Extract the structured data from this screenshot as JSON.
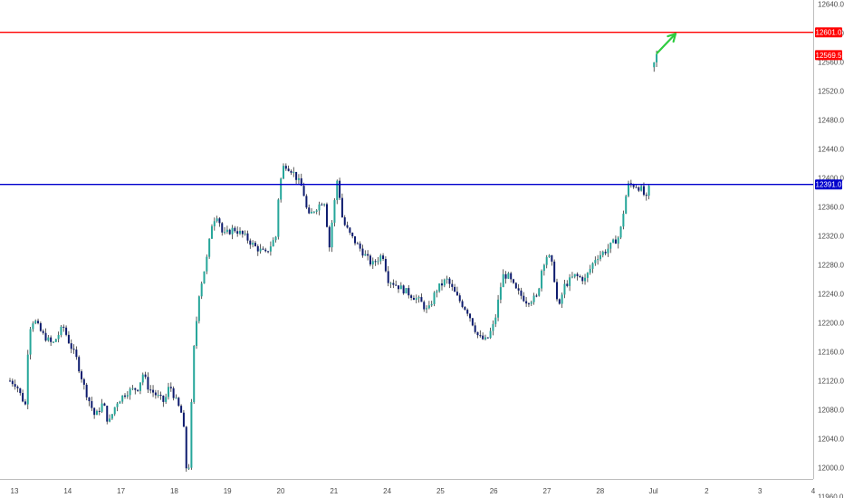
{
  "chart_data": {
    "type": "candlestick",
    "title": "",
    "xlabel": "",
    "ylabel": "",
    "ylim": [
      11940,
      12660
    ],
    "y_ticks": [
      "12640.0",
      "12600.0",
      "12560.0",
      "12520.0",
      "12480.0",
      "12440.0",
      "12400.0",
      "12360.0",
      "12320.0",
      "12280.0",
      "12240.0",
      "12200.0",
      "12160.0",
      "12120.0",
      "12080.0",
      "12040.0",
      "12000.0",
      "11960.0"
    ],
    "x_ticks": [
      "13",
      "14",
      "17",
      "18",
      "19",
      "20",
      "21",
      "24",
      "25",
      "26",
      "27",
      "28",
      "Jul",
      "2",
      "3",
      "4"
    ],
    "grid": false,
    "levels": [
      {
        "name": "resistance",
        "value": 12601.0,
        "label": "12601.0",
        "color": "#ff0000"
      },
      {
        "name": "support",
        "value": 12391.0,
        "label": "12391.0",
        "color": "#0000cc"
      }
    ],
    "last_price": {
      "value": 12569.5,
      "label": "12569.5",
      "color": "#ff0000"
    },
    "annotation": {
      "type": "arrow",
      "color": "#2ecc40",
      "from": {
        "x": 12.15,
        "y": 12572
      },
      "to": {
        "x": 12.5,
        "y": 12599
      }
    },
    "colors": {
      "up": "#26a69a",
      "down": "#0d1b6e",
      "wick": "#333333"
    },
    "price_path": [
      [
        0.0,
        12120
      ],
      [
        0.12,
        12115
      ],
      [
        0.2,
        12100
      ],
      [
        0.3,
        12085
      ],
      [
        0.35,
        12190
      ],
      [
        0.45,
        12205
      ],
      [
        0.6,
        12185
      ],
      [
        0.8,
        12170
      ],
      [
        1.0,
        12195
      ],
      [
        1.1,
        12175
      ],
      [
        1.25,
        12150
      ],
      [
        1.4,
        12110
      ],
      [
        1.5,
        12090
      ],
      [
        1.6,
        12070
      ],
      [
        1.75,
        12090
      ],
      [
        1.85,
        12060
      ],
      [
        2.0,
        12090
      ],
      [
        2.2,
        12105
      ],
      [
        2.4,
        12110
      ],
      [
        2.5,
        12130
      ],
      [
        2.6,
        12110
      ],
      [
        2.75,
        12100
      ],
      [
        2.9,
        12090
      ],
      [
        3.0,
        12115
      ],
      [
        3.1,
        12095
      ],
      [
        3.25,
        12070
      ],
      [
        3.3,
        12005
      ],
      [
        3.35,
        11985
      ],
      [
        3.45,
        12160
      ],
      [
        3.55,
        12240
      ],
      [
        3.7,
        12290
      ],
      [
        3.8,
        12340
      ],
      [
        3.9,
        12350
      ],
      [
        4.0,
        12320
      ],
      [
        4.2,
        12330
      ],
      [
        4.4,
        12320
      ],
      [
        4.6,
        12305
      ],
      [
        4.8,
        12295
      ],
      [
        5.0,
        12320
      ],
      [
        5.05,
        12385
      ],
      [
        5.15,
        12420
      ],
      [
        5.3,
        12410
      ],
      [
        5.5,
        12385
      ],
      [
        5.6,
        12345
      ],
      [
        5.7,
        12355
      ],
      [
        5.9,
        12370
      ],
      [
        6.0,
        12305
      ],
      [
        6.05,
        12340
      ],
      [
        6.15,
        12400
      ],
      [
        6.25,
        12340
      ],
      [
        6.4,
        12320
      ],
      [
        6.6,
        12300
      ],
      [
        6.8,
        12280
      ],
      [
        7.0,
        12295
      ],
      [
        7.1,
        12260
      ],
      [
        7.3,
        12250
      ],
      [
        7.5,
        12240
      ],
      [
        7.7,
        12230
      ],
      [
        7.85,
        12215
      ],
      [
        8.0,
        12245
      ],
      [
        8.2,
        12260
      ],
      [
        8.4,
        12235
      ],
      [
        8.6,
        12215
      ],
      [
        8.8,
        12180
      ],
      [
        8.95,
        12175
      ],
      [
        9.1,
        12200
      ],
      [
        9.25,
        12265
      ],
      [
        9.35,
        12265
      ],
      [
        9.5,
        12245
      ],
      [
        9.7,
        12230
      ],
      [
        9.9,
        12235
      ],
      [
        10.0,
        12280
      ],
      [
        10.1,
        12295
      ],
      [
        10.2,
        12275
      ],
      [
        10.3,
        12215
      ],
      [
        10.4,
        12250
      ],
      [
        10.6,
        12265
      ],
      [
        10.8,
        12260
      ],
      [
        11.0,
        12290
      ],
      [
        11.2,
        12300
      ],
      [
        11.45,
        12320
      ],
      [
        11.6,
        12390
      ],
      [
        11.75,
        12390
      ],
      [
        11.85,
        12385
      ],
      [
        11.95,
        12370
      ],
      [
        12.0,
        12385
      ],
      [
        12.1,
        12565
      ],
      [
        12.15,
        12569.5
      ]
    ]
  }
}
